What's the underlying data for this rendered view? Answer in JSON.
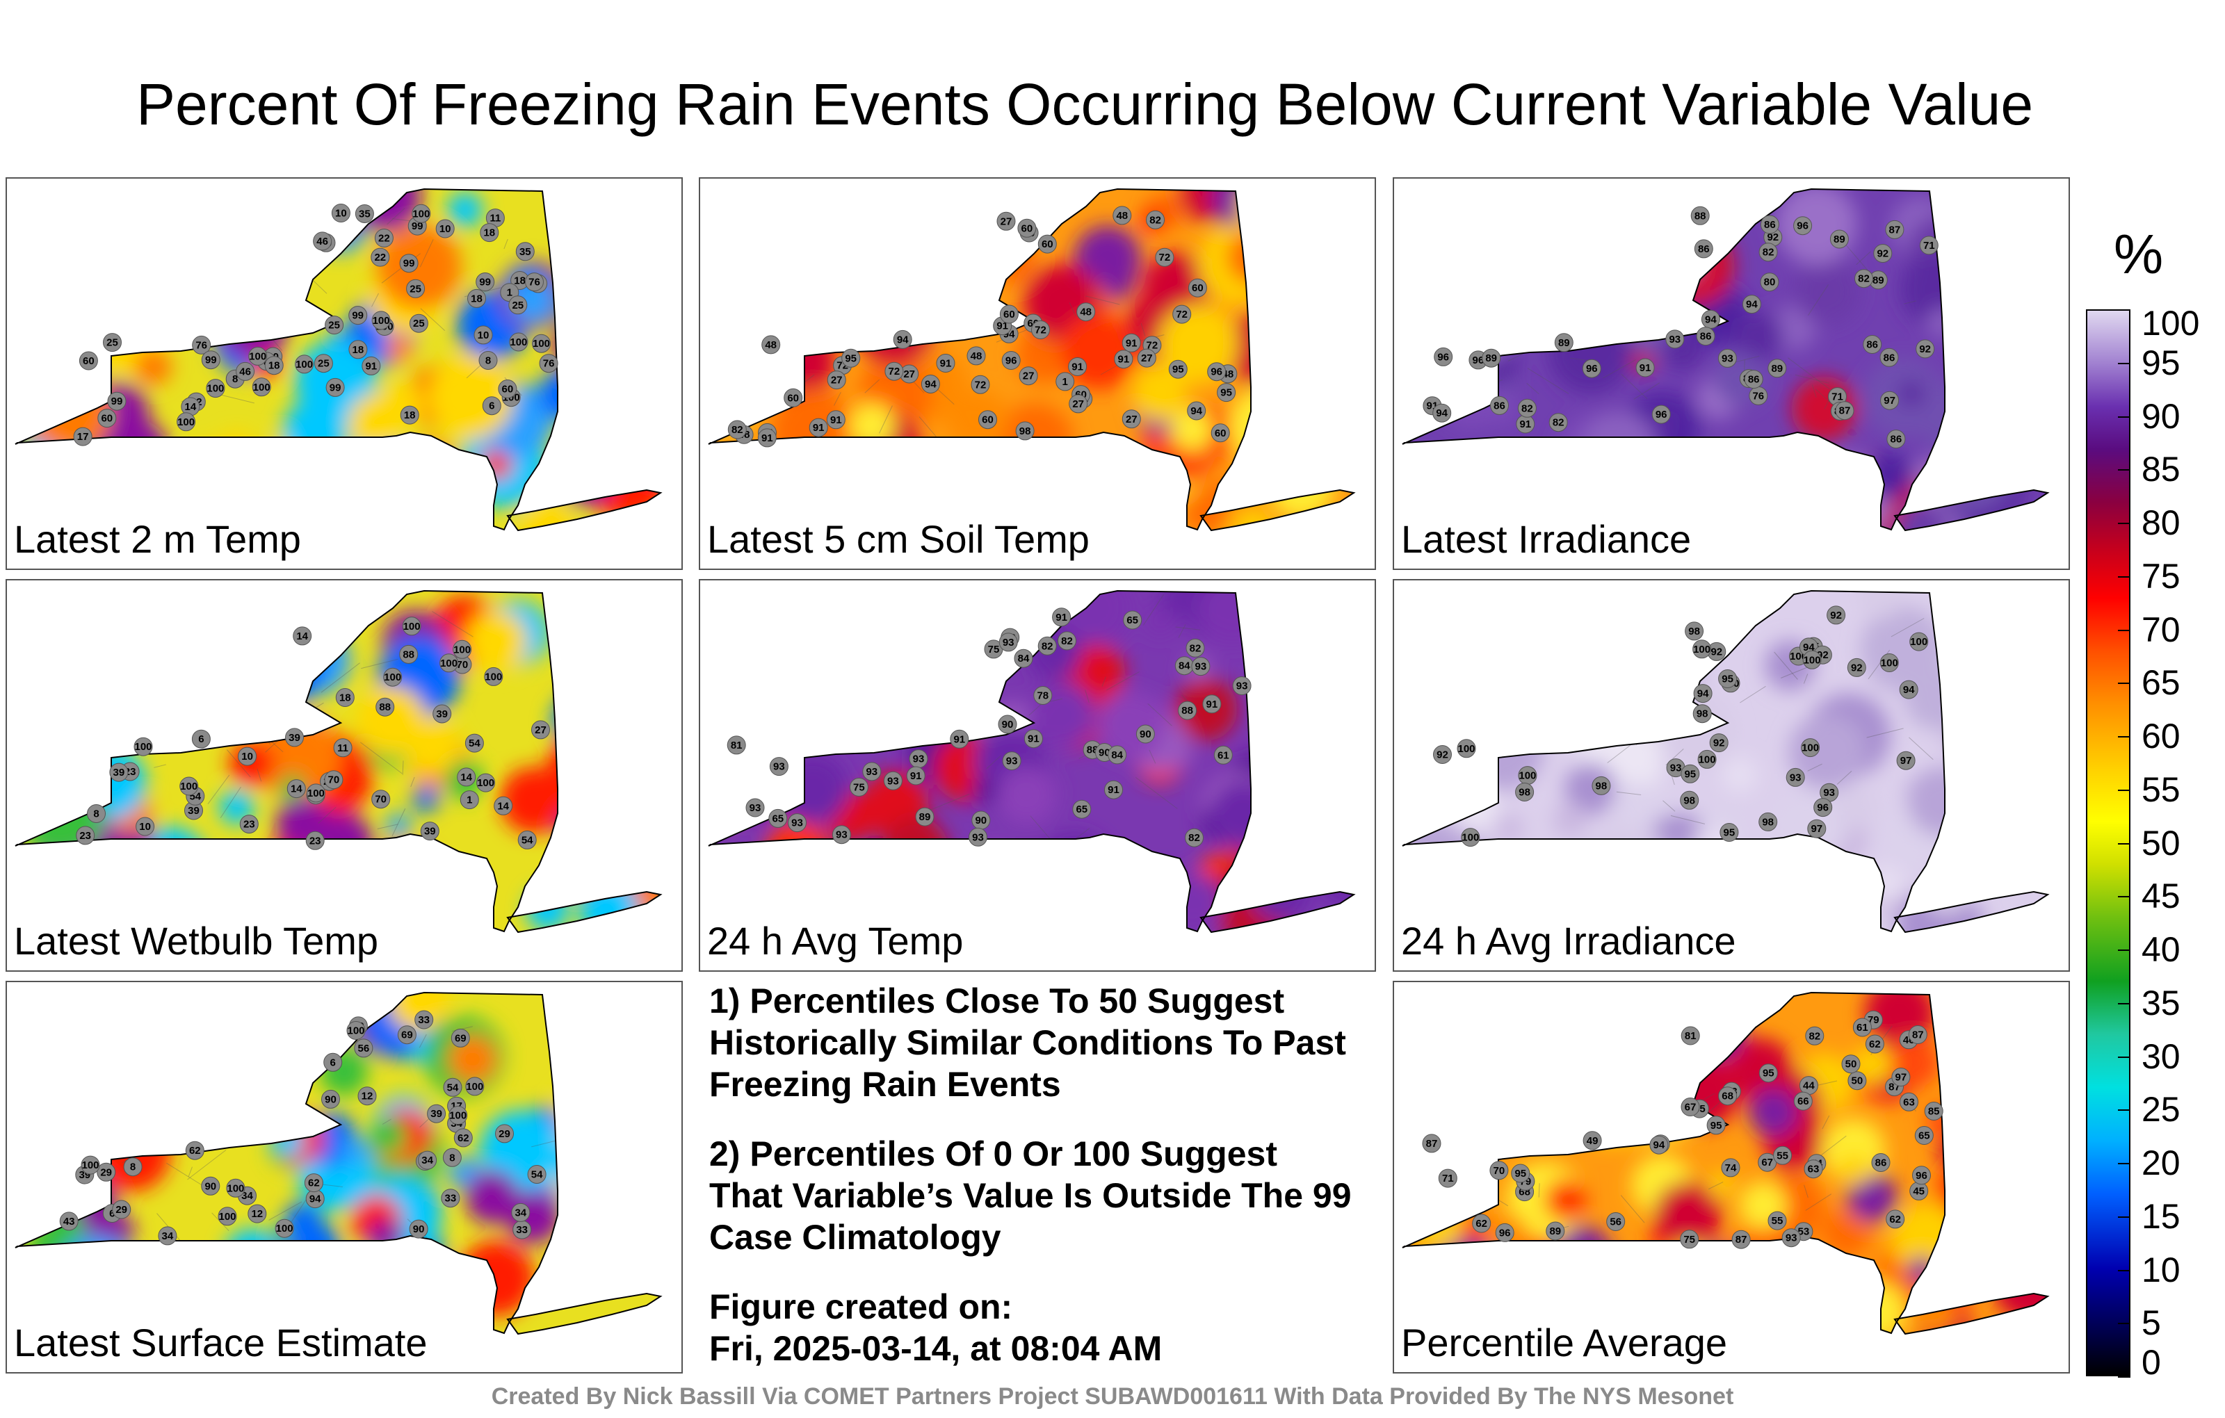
{
  "title": "Percent Of Freezing Rain Events Occurring Below Current Variable Value",
  "panels": [
    {
      "label": "Latest 2 m Temp",
      "scheme": "mixed",
      "stations": [
        "8",
        "99",
        "100",
        "11",
        "60",
        "99",
        "10",
        "46",
        "17",
        "10",
        "18",
        "25",
        "60",
        "99",
        "22",
        "76",
        "35",
        "8",
        "8",
        "6",
        "18",
        "46",
        "18",
        "60",
        "35",
        "46",
        "25",
        "99",
        "100",
        "25",
        "18",
        "100",
        "99",
        "25",
        "91",
        "99",
        "10",
        "18",
        "25",
        "99",
        "100",
        "22",
        "76",
        "14",
        "18",
        "60",
        "100",
        "100",
        "100",
        "100",
        "100",
        "100",
        "22",
        "1",
        "25",
        "76",
        "100",
        "99"
      ]
    },
    {
      "label": "Latest 5 cm Soil Temp",
      "scheme": "warm",
      "stations": [
        "72",
        "60",
        "48",
        "48",
        "60",
        "72",
        "60",
        "95",
        "27",
        "48",
        "72",
        "72",
        "60",
        "48",
        "27",
        "91",
        "94",
        "91",
        "72",
        "94",
        "91",
        "96",
        "48",
        "91",
        "60",
        "82",
        "72",
        "60",
        "27",
        "94",
        "91",
        "60",
        "72",
        "60",
        "82",
        "95",
        "27",
        "27",
        "60",
        "91",
        "94",
        "94",
        "95",
        "48",
        "27",
        "60",
        "91",
        "96",
        "98",
        "91",
        "60",
        "27",
        "1"
      ]
    },
    {
      "label": "Latest Irradiance",
      "scheme": "purple",
      "stations": [
        "96",
        "97",
        "86",
        "96",
        "91",
        "94",
        "92",
        "96",
        "89",
        "71",
        "82",
        "71",
        "91",
        "80",
        "92",
        "86",
        "92",
        "86",
        "89",
        "88",
        "91",
        "94",
        "93",
        "76",
        "86",
        "89",
        "96",
        "94",
        "87",
        "86",
        "82",
        "89",
        "87",
        "82",
        "87",
        "82",
        "96",
        "86",
        "86",
        "89",
        "82",
        "86",
        "93"
      ]
    },
    {
      "label": "Latest Wetbulb Temp",
      "scheme": "mixed",
      "stations": [
        "8",
        "14",
        "100",
        "11",
        "23",
        "10",
        "70",
        "39",
        "54",
        "88",
        "6",
        "10",
        "23",
        "54",
        "100",
        "39",
        "100",
        "70",
        "14",
        "39",
        "100",
        "27",
        "54",
        "100",
        "14",
        "88",
        "23",
        "39",
        "18",
        "27",
        "100",
        "39",
        "14",
        "100",
        "70",
        "100",
        "23",
        "1",
        "100",
        "100"
      ]
    },
    {
      "label": "24 h Avg Temp",
      "scheme": "red",
      "stations": [
        "61",
        "82",
        "65",
        "82",
        "81",
        "90",
        "84",
        "78",
        "75",
        "88",
        "82",
        "90",
        "75",
        "82",
        "84",
        "65",
        "65",
        "93",
        "91",
        "93",
        "90",
        "88",
        "91",
        "93",
        "93",
        "90",
        "84",
        "93",
        "91",
        "91",
        "93",
        "91",
        "90",
        "93",
        "91",
        "93",
        "89",
        "93",
        "93",
        "93",
        "93"
      ]
    },
    {
      "label": "24 h Avg Irradiance",
      "scheme": "pale",
      "stations": [
        "92",
        "93",
        "92",
        "92",
        "93",
        "92",
        "98",
        "97",
        "100",
        "95",
        "98",
        "94",
        "100",
        "100",
        "98",
        "98",
        "97",
        "100",
        "95",
        "94",
        "100",
        "98",
        "100",
        "94",
        "92",
        "95",
        "92",
        "100",
        "98",
        "100",
        "100",
        "100",
        "100",
        "93",
        "95",
        "96"
      ]
    },
    {
      "label": "Latest Surface Estimate",
      "scheme": "mixed",
      "stations": [
        "8",
        "69",
        "34",
        "12",
        "17",
        "39",
        "33",
        "6",
        "12",
        "8",
        "27",
        "62",
        "34",
        "33",
        "56",
        "33",
        "90",
        "54",
        "29",
        "62",
        "30",
        "43",
        "90",
        "100",
        "34",
        "39",
        "29",
        "54",
        "34",
        "94",
        "90",
        "62",
        "100",
        "34",
        "29",
        "69",
        "100",
        "100",
        "100",
        "100",
        "6",
        "100"
      ]
    },
    {
      "label": "Percentile Average",
      "scheme": "warm",
      "stations": [
        "46",
        "87",
        "45",
        "79",
        "53",
        "74",
        "50",
        "63",
        "55",
        "81",
        "75",
        "70",
        "44",
        "67",
        "49",
        "65",
        "67",
        "68",
        "74",
        "53",
        "63",
        "93",
        "62",
        "68",
        "71",
        "89",
        "87",
        "56",
        "55",
        "95",
        "62",
        "66",
        "86",
        "61",
        "87",
        "94",
        "87",
        "65",
        "62",
        "55",
        "79",
        "85",
        "50",
        "82",
        "95",
        "96",
        "97",
        "96",
        "95"
      ]
    }
  ],
  "notes": {
    "note1": "1) Percentiles Close To 50 Suggest Historically Similar Conditions To Past Freezing Rain Events",
    "note2": "2) Percentiles Of 0 Or 100 Suggest That Variable’s Value Is Outside The 99 Case Climatology",
    "created_label": "Figure created on:",
    "created_date": "Fri, 2025-03-14, at 08:04 AM"
  },
  "colorbar": {
    "unit": "%",
    "ticks": [
      "0",
      "5",
      "10",
      "15",
      "20",
      "25",
      "30",
      "35",
      "40",
      "45",
      "50",
      "55",
      "60",
      "65",
      "70",
      "75",
      "80",
      "85",
      "90",
      "95",
      "100"
    ]
  },
  "credit": "Created By Nick Bassill Via COMET Partners Project SUBAWD001611 With Data Provided By The NYS Mesonet"
}
